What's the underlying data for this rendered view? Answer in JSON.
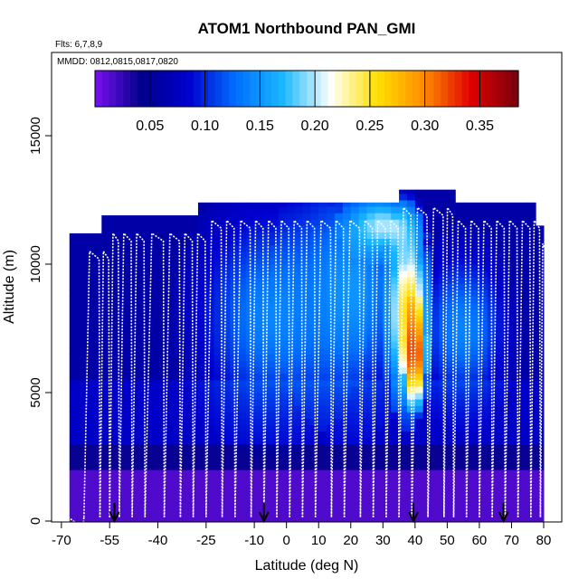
{
  "chart_data": {
    "type": "heatmap",
    "title": "ATOM1 Northbound PAN_GMI",
    "flights_label": "Flts: 6,7,8,9",
    "dates_label": "MMDD: 0812,0815,0817,0820",
    "xlabel": "Latitude (deg N)",
    "ylabel": "Altitude (m)",
    "xlim": [
      -70,
      85
    ],
    "ylim": [
      0,
      17500
    ],
    "x_ticks": [
      -70,
      -55,
      -40,
      -25,
      -10,
      0,
      10,
      20,
      30,
      40,
      50,
      60,
      70,
      80
    ],
    "x_tick_labels": [
      "-70",
      "-55",
      "-40",
      "-25",
      "-10",
      "0",
      "10",
      "20",
      "30",
      "40",
      "50",
      "60",
      "70",
      "80"
    ],
    "y_ticks": [
      0,
      5000,
      10000,
      15000
    ],
    "y_tick_labels": [
      "0",
      "5000",
      "10000",
      "15000"
    ],
    "colorbar": {
      "min": 0.0,
      "max": 0.385,
      "ticks": [
        0.05,
        0.1,
        0.15,
        0.2,
        0.25,
        0.3,
        0.35
      ],
      "tick_labels": [
        "0.05",
        "0.10",
        "0.15",
        "0.20",
        "0.25",
        "0.30",
        "0.35"
      ],
      "colors": [
        "#7a10f0",
        "#00008a",
        "#0000d0",
        "#0070ff",
        "#1ab8ff",
        "#ffffff",
        "#ffe000",
        "#ff8c00",
        "#e00000",
        "#780010"
      ]
    },
    "field": {
      "background_value": 0.06,
      "top_profile": [
        {
          "lat": -66.5,
          "alt": 11200
        },
        {
          "lat": -57,
          "alt": 11900
        },
        {
          "lat": -40,
          "alt": 11900
        },
        {
          "lat": -27,
          "alt": 12400
        },
        {
          "lat": -10,
          "alt": 12400
        },
        {
          "lat": 35,
          "alt": 12900
        },
        {
          "lat": 52,
          "alt": 12400
        },
        {
          "lat": 77,
          "alt": 12400
        },
        {
          "lat": 78.5,
          "alt": 11500
        },
        {
          "lat": 80,
          "alt": 8500
        }
      ],
      "layers": [
        {
          "from": 0,
          "to": 2000,
          "value": 0.015
        },
        {
          "from": 2000,
          "to": 3000,
          "value": 0.04
        },
        {
          "from": 3000,
          "to": 5500,
          "value": 0.08
        }
      ],
      "features": [
        {
          "lat": -5,
          "alt": 8000,
          "w_lat": 30,
          "w_alt": 5500,
          "value": 0.14
        },
        {
          "lat": 20,
          "alt": 9000,
          "w_lat": 25,
          "w_alt": 6000,
          "value": 0.15
        },
        {
          "lat": 55,
          "alt": 7500,
          "w_lat": 18,
          "w_alt": 4000,
          "value": 0.14
        },
        {
          "lat": 30,
          "alt": 11500,
          "w_lat": 15,
          "w_alt": 1500,
          "value": 0.2
        },
        {
          "lat": 38,
          "alt": 8000,
          "w_lat": 8,
          "w_alt": 4500,
          "value": 0.27
        },
        {
          "lat": 40,
          "alt": 6500,
          "w_lat": 4,
          "w_alt": 2500,
          "value": 0.34
        }
      ]
    },
    "flight_track_lats": [
      -68,
      -63,
      -58,
      -55,
      -52,
      -48,
      -44,
      -38,
      -33,
      -29,
      -25,
      -20,
      -16,
      -11,
      -7,
      -3,
      1,
      5,
      9,
      14,
      18,
      23,
      27,
      31,
      35,
      39,
      44,
      49,
      52,
      56,
      60,
      64,
      68,
      72,
      76,
      79
    ],
    "arrows_lat": [
      -53.5,
      -7,
      39.5,
      67.5
    ]
  }
}
